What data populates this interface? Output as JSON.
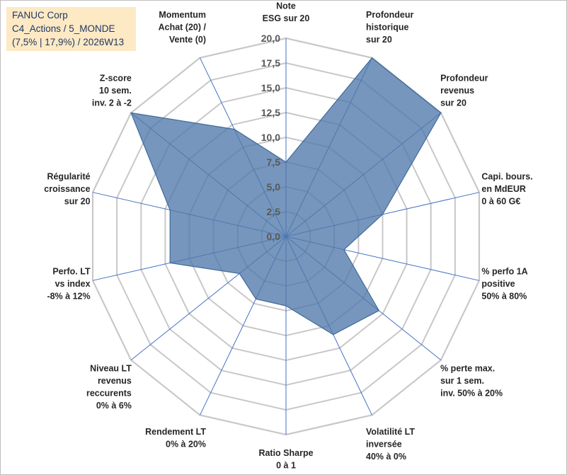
{
  "header": {
    "line1": "FANUC Corp",
    "line2": "C4_Actions / 5_MONDE",
    "line3": "(7,5% | 17,9%) / 2026W13"
  },
  "chart_data": {
    "type": "radar",
    "title": "FANUC Corp",
    "rmax": 20,
    "ticks": [
      "0,0",
      "2,5",
      "5,0",
      "7,5",
      "10,0",
      "12,5",
      "15,0",
      "17,5",
      "20,0"
    ],
    "tick_values": [
      0,
      2.5,
      5,
      7.5,
      10,
      12.5,
      15,
      17.5,
      20
    ],
    "grid_rings": 8,
    "series": [
      {
        "name": "FANUC Corp",
        "color": "#4f78aa",
        "values": [
          7.5,
          20,
          20,
          10,
          6,
          12,
          11,
          7,
          7,
          6,
          12,
          12,
          20,
          12
        ]
      }
    ],
    "categories": [
      [
        "Note",
        "ESG sur 20"
      ],
      [
        "Profondeur",
        "historique",
        "sur 20"
      ],
      [
        "Profondeur",
        "revenus",
        "sur 20"
      ],
      [
        "Capi. bours.",
        "en MdEUR",
        "0 à 60 G€"
      ],
      [
        "% perfo 1A",
        "positive",
        "50% à 80%"
      ],
      [
        "% perte max.",
        "sur 1 sem.",
        "inv. 50% à 20%"
      ],
      [
        "Volatilité LT",
        "inversée",
        "40% à 0%"
      ],
      [
        "Ratio Sharpe",
        "0 à 1"
      ],
      [
        "Rendement LT",
        "0% à 20%"
      ],
      [
        "Niveau LT",
        "revenus",
        "reccurents",
        "0% à 6%"
      ],
      [
        "Perfo. LT",
        "vs index",
        "-8% à 12%"
      ],
      [
        "Régularité",
        "croissance",
        "sur 20"
      ],
      [
        "Z-score",
        "10 sem.",
        "inv. 2 à -2"
      ],
      [
        "Momentum",
        "Achat (20) /",
        "Vente (0)"
      ]
    ]
  }
}
